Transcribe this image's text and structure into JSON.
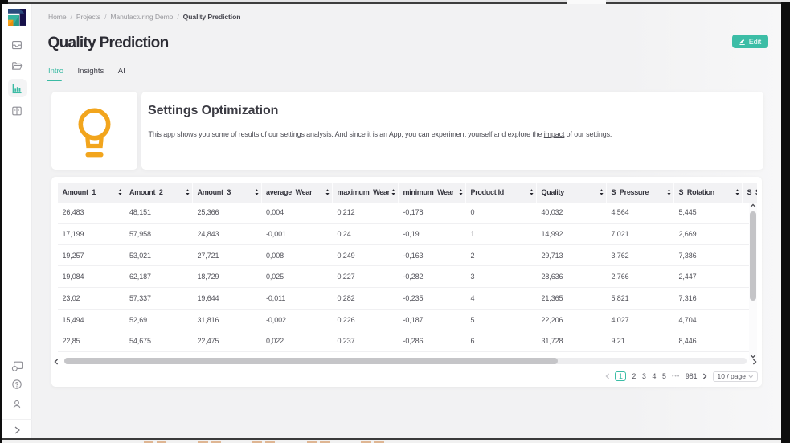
{
  "breadcrumb": {
    "items": [
      "Home",
      "Projects",
      "Manufacturing Demo",
      "Quality Prediction"
    ],
    "separator": "/"
  },
  "page": {
    "title": "Quality Prediction"
  },
  "edit_button": {
    "label": "Edit",
    "icon": "edit-pencil-icon"
  },
  "tabs": [
    {
      "label": "Intro",
      "active": true
    },
    {
      "label": "Insights",
      "active": false
    },
    {
      "label": "AI",
      "active": false
    }
  ],
  "intro_card": {
    "icon": "lightbulb-icon",
    "title": "Settings Optimization",
    "description_before_link": "This app shows you some of results of our settings analysis. And since it is an App, you can experiment yourself and explore the ",
    "link_text": "impact",
    "description_after_link": " of our settings."
  },
  "table": {
    "columns": [
      "Amount_1",
      "Amount_2",
      "Amount_3",
      "average_Wear",
      "maximum_Wear",
      "minimum_Wear",
      "Product Id",
      "Quality",
      "S_Pressure",
      "S_Rotation",
      "S_S"
    ],
    "rows": [
      [
        "26,483",
        "48,151",
        "25,366",
        "0,004",
        "0,212",
        "-0,178",
        "0",
        "40,032",
        "4,564",
        "5,445",
        ""
      ],
      [
        "17,199",
        "57,958",
        "24,843",
        "-0,001",
        "0,24",
        "-0,19",
        "1",
        "14,992",
        "7,021",
        "2,669",
        ""
      ],
      [
        "19,257",
        "53,021",
        "27,721",
        "0,008",
        "0,249",
        "-0,163",
        "2",
        "29,713",
        "3,762",
        "7,386",
        ""
      ],
      [
        "19,084",
        "62,187",
        "18,729",
        "0,025",
        "0,227",
        "-0,282",
        "3",
        "28,636",
        "2,766",
        "2,447",
        ""
      ],
      [
        "23,02",
        "57,337",
        "19,644",
        "-0,011",
        "0,282",
        "-0,235",
        "4",
        "21,365",
        "5,821",
        "7,316",
        ""
      ],
      [
        "15,494",
        "52,69",
        "31,816",
        "-0,002",
        "0,226",
        "-0,187",
        "5",
        "22,206",
        "4,027",
        "4,704",
        ""
      ],
      [
        "22,85",
        "54,675",
        "22,475",
        "0,022",
        "0,237",
        "-0,286",
        "6",
        "31,728",
        "9,21",
        "8,446",
        ""
      ]
    ]
  },
  "pagination": {
    "pages": [
      "1",
      "2",
      "3",
      "4",
      "5",
      "•••",
      "981"
    ],
    "active_page": "1",
    "page_size_label": "10 / page"
  },
  "colors": {
    "accent": "#3cbda6",
    "bulb_orange": "#f2a51d"
  }
}
